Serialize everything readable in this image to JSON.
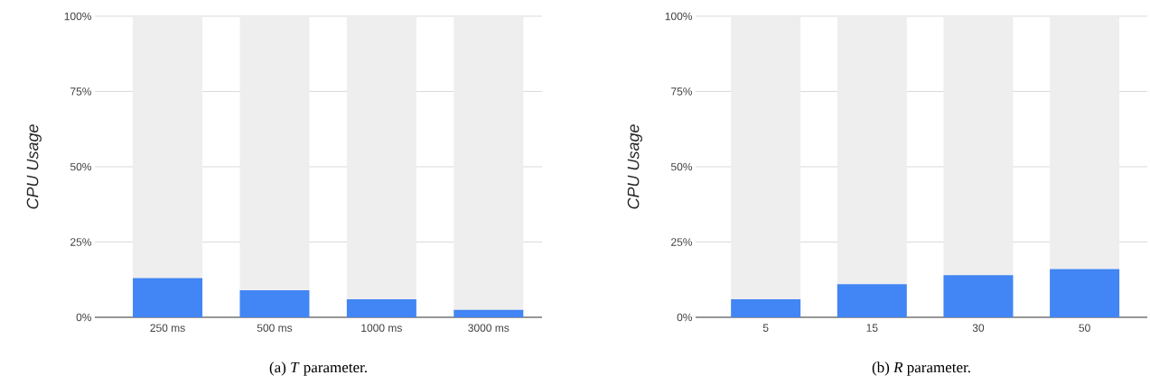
{
  "chart_data": [
    {
      "type": "bar",
      "stacked": true,
      "title": "(a) *T* parameter.",
      "ylabel": "CPU Usage",
      "categories": [
        "250 ms",
        "500 ms",
        "1000 ms",
        "3000 ms"
      ],
      "series": [
        {
          "color": "#4285f4",
          "values": [
            13,
            9,
            6,
            2.5
          ]
        },
        {
          "color": "#eeeeee",
          "values": [
            87,
            91,
            94,
            97.5
          ]
        }
      ],
      "ylim": [
        0,
        100
      ],
      "yticks": [
        {
          "value": 0,
          "label": "0%"
        },
        {
          "value": 25,
          "label": "25%"
        },
        {
          "value": 50,
          "label": "50%"
        },
        {
          "value": 75,
          "label": "75%"
        },
        {
          "value": 100,
          "label": "100%"
        }
      ],
      "grid": "y"
    },
    {
      "type": "bar",
      "stacked": true,
      "title": "(b) *R* parameter.",
      "ylabel": "CPU Usage",
      "categories": [
        "5",
        "15",
        "30",
        "50"
      ],
      "series": [
        {
          "color": "#4285f4",
          "values": [
            6,
            11,
            14,
            16
          ]
        },
        {
          "color": "#eeeeee",
          "values": [
            94,
            89,
            86,
            84
          ]
        }
      ],
      "ylim": [
        0,
        100
      ],
      "yticks": [
        {
          "value": 0,
          "label": "0%"
        },
        {
          "value": 25,
          "label": "25%"
        },
        {
          "value": 50,
          "label": "50%"
        },
        {
          "value": 75,
          "label": "75%"
        },
        {
          "value": 100,
          "label": "100%"
        }
      ],
      "grid": "y"
    }
  ]
}
